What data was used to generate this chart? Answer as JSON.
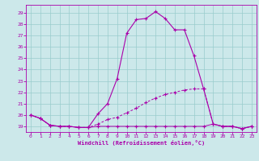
{
  "bg_color": "#cce8ea",
  "line_color": "#aa00aa",
  "grid_color": "#99cccc",
  "xlabel": "Windchill (Refroidissement éolien,°C)",
  "ylim": [
    18.5,
    29.7
  ],
  "xlim": [
    -0.5,
    23.5
  ],
  "yticks": [
    19,
    20,
    21,
    22,
    23,
    24,
    25,
    26,
    27,
    28,
    29
  ],
  "xticks": [
    0,
    1,
    2,
    3,
    4,
    5,
    6,
    7,
    8,
    9,
    10,
    11,
    12,
    13,
    14,
    15,
    16,
    17,
    18,
    19,
    20,
    21,
    22,
    23
  ],
  "curve1_x": [
    0,
    1,
    2,
    3,
    4,
    5,
    6,
    7,
    8,
    9,
    10,
    11,
    12,
    13,
    14,
    15,
    16,
    17,
    18,
    19,
    20,
    21,
    22,
    23
  ],
  "curve1_y": [
    20.0,
    19.7,
    19.1,
    19.0,
    19.0,
    18.9,
    18.9,
    20.1,
    21.0,
    23.2,
    27.2,
    28.4,
    28.5,
    29.1,
    28.5,
    27.5,
    27.5,
    25.2,
    22.3,
    19.2,
    19.0,
    19.0,
    18.8,
    19.0
  ],
  "curve2_x": [
    0,
    1,
    2,
    3,
    4,
    5,
    6,
    7,
    8,
    9,
    10,
    11,
    12,
    13,
    14,
    15,
    16,
    17,
    18,
    19,
    20,
    21,
    22,
    23
  ],
  "curve2_y": [
    20.0,
    19.7,
    19.1,
    19.0,
    19.0,
    18.9,
    18.9,
    19.2,
    19.6,
    19.8,
    20.2,
    20.6,
    21.1,
    21.5,
    21.8,
    22.0,
    22.2,
    22.3,
    22.3,
    19.2,
    19.0,
    19.0,
    18.8,
    19.0
  ],
  "curve3_x": [
    0,
    1,
    2,
    3,
    4,
    5,
    6,
    7,
    8,
    9,
    10,
    11,
    12,
    13,
    14,
    15,
    16,
    17,
    18,
    19,
    20,
    21,
    22,
    23
  ],
  "curve3_y": [
    20.0,
    19.7,
    19.1,
    19.0,
    19.0,
    18.9,
    18.9,
    19.0,
    19.0,
    19.0,
    19.0,
    19.0,
    19.0,
    19.0,
    19.0,
    19.0,
    19.0,
    19.0,
    19.0,
    19.2,
    19.0,
    19.0,
    18.8,
    19.0
  ]
}
